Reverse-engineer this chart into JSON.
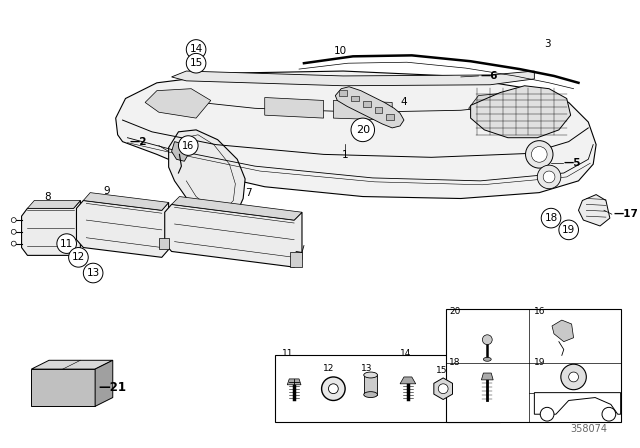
{
  "bg_color": "#ffffff",
  "line_color": "#000000",
  "gray_light": "#d8d8d8",
  "gray_mid": "#b0b0b0",
  "gray_dark": "#888888",
  "diagram_number": "358074",
  "bumper_fill": "#f2f2f2",
  "panel_fill": "#ececec",
  "grille_fill": "#e0e0e0",
  "box21_top": "#d0d0d0",
  "box21_front": "#b8b8b8",
  "box21_side": "#989898"
}
